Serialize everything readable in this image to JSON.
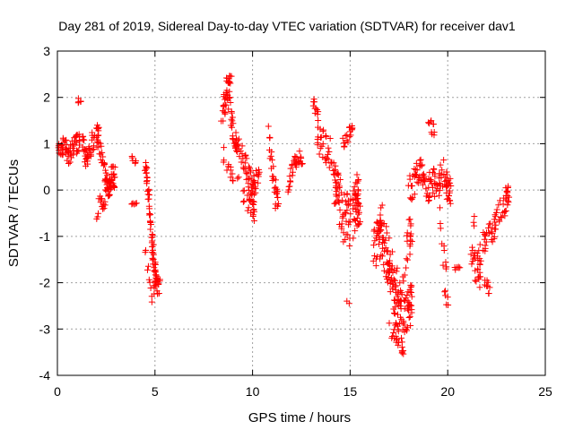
{
  "chart_data": {
    "type": "scatter",
    "title": "Day 281 of 2019, Sidereal Day-to-day VTEC variation (SDTVAR) for receiver dav1",
    "xlabel": "GPS time / hours",
    "ylabel": "SDTVAR / TECUs",
    "xlim": [
      0,
      25
    ],
    "ylim": [
      -4,
      3
    ],
    "x_ticks": [
      "0",
      "5",
      "10",
      "15",
      "20",
      "25"
    ],
    "y_ticks": [
      "-4",
      "-3",
      "-2",
      "-1",
      "0",
      "1",
      "2",
      "3"
    ],
    "grid": true,
    "marker": "+",
    "color": "#ff0000",
    "series": [
      {
        "name": "SDTVAR",
        "segments": [
          {
            "t": [
              0.0,
              0.3,
              0.6,
              0.9,
              1.2,
              1.5,
              1.8,
              2.1,
              2.4,
              2.6,
              2.8
            ],
            "v": [
              0.7,
              1.0,
              0.8,
              0.9,
              1.1,
              0.7,
              1.0,
              1.2,
              0.4,
              0.0,
              0.3
            ],
            "s": 0.25,
            "n": 16
          },
          {
            "t": [
              1.0,
              1.1
            ],
            "v": [
              2.0,
              1.9
            ],
            "s": 0.05,
            "n": 3
          },
          {
            "t": [
              2.0,
              2.2,
              2.4,
              2.6
            ],
            "v": [
              -0.6,
              -0.2,
              -0.4,
              0.1
            ],
            "s": 0.15,
            "n": 6
          },
          {
            "t": [
              3.8,
              3.9
            ],
            "v": [
              0.7,
              0.6
            ],
            "s": 0.05,
            "n": 3
          },
          {
            "t": [
              3.8,
              3.9
            ],
            "v": [
              -0.3,
              -0.3
            ],
            "s": 0.03,
            "n": 3
          },
          {
            "t": [
              4.5,
              4.6,
              4.7,
              4.8,
              4.9,
              5.0,
              5.1
            ],
            "v": [
              0.6,
              0.2,
              -0.3,
              -0.8,
              -1.3,
              -1.7,
              -2.1
            ],
            "s": 0.2,
            "n": 10
          },
          {
            "t": [
              4.5,
              4.7,
              4.9,
              5.0
            ],
            "v": [
              -1.2,
              -1.9,
              -2.4,
              -2.0
            ],
            "s": 0.1,
            "n": 5
          },
          {
            "t": [
              8.4,
              8.6,
              8.8,
              9.0,
              9.2,
              9.5,
              9.8,
              10.0
            ],
            "v": [
              1.6,
              1.9,
              2.0,
              1.3,
              1.0,
              0.7,
              0.3,
              0.1
            ],
            "s": 0.25,
            "n": 12
          },
          {
            "t": [
              8.6,
              8.8
            ],
            "v": [
              2.3,
              2.4
            ],
            "s": 0.1,
            "n": 6
          },
          {
            "t": [
              8.5,
              8.8,
              9.2,
              9.6,
              10.0
            ],
            "v": [
              0.8,
              0.5,
              0.2,
              -0.2,
              -0.5
            ],
            "s": 0.2,
            "n": 6
          },
          {
            "t": [
              9.8,
              10.0,
              10.2
            ],
            "v": [
              0.0,
              -0.4,
              0.3
            ],
            "s": 0.2,
            "n": 6
          },
          {
            "t": [
              10.8,
              11.0,
              11.2
            ],
            "v": [
              1.2,
              0.5,
              -0.2
            ],
            "s": 0.3,
            "n": 10
          },
          {
            "t": [
              11.8,
              12.0,
              12.2,
              12.4
            ],
            "v": [
              0.0,
              0.4,
              0.6,
              0.7
            ],
            "s": 0.15,
            "n": 8
          },
          {
            "t": [
              13.0,
              13.2
            ],
            "v": [
              2.3,
              1.7
            ],
            "s": 0.1,
            "n": 5
          },
          {
            "t": [
              13.3,
              13.6,
              14.0,
              14.3,
              14.6,
              15.0,
              15.3
            ],
            "v": [
              1.2,
              1.0,
              0.8,
              0.2,
              -0.2,
              -0.5,
              0.0
            ],
            "s": 0.35,
            "n": 14
          },
          {
            "t": [
              14.2,
              14.6,
              15.0,
              15.4
            ],
            "v": [
              0.0,
              -0.8,
              -1.0,
              -0.5
            ],
            "s": 0.3,
            "n": 10
          },
          {
            "t": [
              14.5,
              14.8,
              15.0
            ],
            "v": [
              0.9,
              1.1,
              1.3
            ],
            "s": 0.15,
            "n": 6
          },
          {
            "t": [
              14.8
            ],
            "v": [
              -2.4
            ],
            "s": 0.05,
            "n": 2
          },
          {
            "t": [
              16.2,
              16.5,
              16.8,
              17.1,
              17.4,
              17.7,
              18.0
            ],
            "v": [
              -1.3,
              -1.0,
              -1.5,
              -2.0,
              -2.6,
              -2.9,
              -2.5
            ],
            "s": 0.45,
            "n": 18
          },
          {
            "t": [
              16.4,
              16.8,
              17.2,
              17.6,
              18.0
            ],
            "v": [
              -0.5,
              -0.8,
              -1.8,
              -2.2,
              -1.0
            ],
            "s": 0.4,
            "n": 12
          },
          {
            "t": [
              17.0,
              17.3,
              17.6
            ],
            "v": [
              -3.0,
              -3.2,
              -3.4
            ],
            "s": 0.15,
            "n": 6
          },
          {
            "t": [
              18.0,
              18.3,
              18.6,
              18.9,
              19.2,
              19.5,
              19.8,
              20.0
            ],
            "v": [
              0.0,
              0.2,
              0.5,
              0.0,
              0.2,
              0.1,
              0.4,
              0.0
            ],
            "s": 0.3,
            "n": 14
          },
          {
            "t": [
              19.0,
              19.2
            ],
            "v": [
              1.6,
              1.3
            ],
            "s": 0.15,
            "n": 5
          },
          {
            "t": [
              19.6,
              19.8
            ],
            "v": [
              -0.5,
              -1.5
            ],
            "s": 0.3,
            "n": 5
          },
          {
            "t": [
              19.8,
              19.9
            ],
            "v": [
              -2.0,
              -2.4
            ],
            "s": 0.1,
            "n": 3
          },
          {
            "t": [
              20.3,
              20.5
            ],
            "v": [
              -1.7,
              -1.7
            ],
            "s": 0.05,
            "n": 3
          },
          {
            "t": [
              21.2,
              21.5,
              21.8,
              22.1,
              22.4,
              22.7,
              23.0
            ],
            "v": [
              -1.4,
              -1.8,
              -1.2,
              -1.0,
              -0.8,
              -0.5,
              -0.2
            ],
            "s": 0.3,
            "n": 12
          },
          {
            "t": [
              21.3,
              21.6,
              22.0
            ],
            "v": [
              -0.4,
              -2.0,
              -2.1
            ],
            "s": 0.15,
            "n": 6
          }
        ]
      }
    ]
  }
}
